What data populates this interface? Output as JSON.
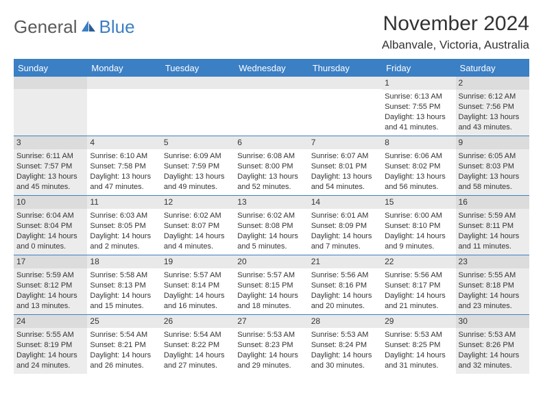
{
  "brand": {
    "part1": "General",
    "part2": "Blue"
  },
  "title": "November 2024",
  "location": "Albanvale, Victoria, Australia",
  "colors": {
    "accent": "#3b7fc4",
    "background": "#ffffff",
    "text": "#333333",
    "shaded": "#ececec",
    "numbar": "#e9e9e9"
  },
  "dayHeaders": [
    "Sunday",
    "Monday",
    "Tuesday",
    "Wednesday",
    "Thursday",
    "Friday",
    "Saturday"
  ],
  "weeks": [
    [
      {
        "empty": true,
        "shaded": true
      },
      {
        "empty": true,
        "shaded": false
      },
      {
        "empty": true,
        "shaded": false
      },
      {
        "empty": true,
        "shaded": false
      },
      {
        "empty": true,
        "shaded": false
      },
      {
        "day": "1",
        "sunrise": "Sunrise: 6:13 AM",
        "sunset": "Sunset: 7:55 PM",
        "daylight1": "Daylight: 13 hours",
        "daylight2": "and 41 minutes."
      },
      {
        "day": "2",
        "shaded": true,
        "sunrise": "Sunrise: 6:12 AM",
        "sunset": "Sunset: 7:56 PM",
        "daylight1": "Daylight: 13 hours",
        "daylight2": "and 43 minutes."
      }
    ],
    [
      {
        "day": "3",
        "shaded": true,
        "sunrise": "Sunrise: 6:11 AM",
        "sunset": "Sunset: 7:57 PM",
        "daylight1": "Daylight: 13 hours",
        "daylight2": "and 45 minutes."
      },
      {
        "day": "4",
        "sunrise": "Sunrise: 6:10 AM",
        "sunset": "Sunset: 7:58 PM",
        "daylight1": "Daylight: 13 hours",
        "daylight2": "and 47 minutes."
      },
      {
        "day": "5",
        "sunrise": "Sunrise: 6:09 AM",
        "sunset": "Sunset: 7:59 PM",
        "daylight1": "Daylight: 13 hours",
        "daylight2": "and 49 minutes."
      },
      {
        "day": "6",
        "sunrise": "Sunrise: 6:08 AM",
        "sunset": "Sunset: 8:00 PM",
        "daylight1": "Daylight: 13 hours",
        "daylight2": "and 52 minutes."
      },
      {
        "day": "7",
        "sunrise": "Sunrise: 6:07 AM",
        "sunset": "Sunset: 8:01 PM",
        "daylight1": "Daylight: 13 hours",
        "daylight2": "and 54 minutes."
      },
      {
        "day": "8",
        "sunrise": "Sunrise: 6:06 AM",
        "sunset": "Sunset: 8:02 PM",
        "daylight1": "Daylight: 13 hours",
        "daylight2": "and 56 minutes."
      },
      {
        "day": "9",
        "shaded": true,
        "sunrise": "Sunrise: 6:05 AM",
        "sunset": "Sunset: 8:03 PM",
        "daylight1": "Daylight: 13 hours",
        "daylight2": "and 58 minutes."
      }
    ],
    [
      {
        "day": "10",
        "shaded": true,
        "sunrise": "Sunrise: 6:04 AM",
        "sunset": "Sunset: 8:04 PM",
        "daylight1": "Daylight: 14 hours",
        "daylight2": "and 0 minutes."
      },
      {
        "day": "11",
        "sunrise": "Sunrise: 6:03 AM",
        "sunset": "Sunset: 8:05 PM",
        "daylight1": "Daylight: 14 hours",
        "daylight2": "and 2 minutes."
      },
      {
        "day": "12",
        "sunrise": "Sunrise: 6:02 AM",
        "sunset": "Sunset: 8:07 PM",
        "daylight1": "Daylight: 14 hours",
        "daylight2": "and 4 minutes."
      },
      {
        "day": "13",
        "sunrise": "Sunrise: 6:02 AM",
        "sunset": "Sunset: 8:08 PM",
        "daylight1": "Daylight: 14 hours",
        "daylight2": "and 5 minutes."
      },
      {
        "day": "14",
        "sunrise": "Sunrise: 6:01 AM",
        "sunset": "Sunset: 8:09 PM",
        "daylight1": "Daylight: 14 hours",
        "daylight2": "and 7 minutes."
      },
      {
        "day": "15",
        "sunrise": "Sunrise: 6:00 AM",
        "sunset": "Sunset: 8:10 PM",
        "daylight1": "Daylight: 14 hours",
        "daylight2": "and 9 minutes."
      },
      {
        "day": "16",
        "shaded": true,
        "sunrise": "Sunrise: 5:59 AM",
        "sunset": "Sunset: 8:11 PM",
        "daylight1": "Daylight: 14 hours",
        "daylight2": "and 11 minutes."
      }
    ],
    [
      {
        "day": "17",
        "shaded": true,
        "sunrise": "Sunrise: 5:59 AM",
        "sunset": "Sunset: 8:12 PM",
        "daylight1": "Daylight: 14 hours",
        "daylight2": "and 13 minutes."
      },
      {
        "day": "18",
        "sunrise": "Sunrise: 5:58 AM",
        "sunset": "Sunset: 8:13 PM",
        "daylight1": "Daylight: 14 hours",
        "daylight2": "and 15 minutes."
      },
      {
        "day": "19",
        "sunrise": "Sunrise: 5:57 AM",
        "sunset": "Sunset: 8:14 PM",
        "daylight1": "Daylight: 14 hours",
        "daylight2": "and 16 minutes."
      },
      {
        "day": "20",
        "sunrise": "Sunrise: 5:57 AM",
        "sunset": "Sunset: 8:15 PM",
        "daylight1": "Daylight: 14 hours",
        "daylight2": "and 18 minutes."
      },
      {
        "day": "21",
        "sunrise": "Sunrise: 5:56 AM",
        "sunset": "Sunset: 8:16 PM",
        "daylight1": "Daylight: 14 hours",
        "daylight2": "and 20 minutes."
      },
      {
        "day": "22",
        "sunrise": "Sunrise: 5:56 AM",
        "sunset": "Sunset: 8:17 PM",
        "daylight1": "Daylight: 14 hours",
        "daylight2": "and 21 minutes."
      },
      {
        "day": "23",
        "shaded": true,
        "sunrise": "Sunrise: 5:55 AM",
        "sunset": "Sunset: 8:18 PM",
        "daylight1": "Daylight: 14 hours",
        "daylight2": "and 23 minutes."
      }
    ],
    [
      {
        "day": "24",
        "shaded": true,
        "sunrise": "Sunrise: 5:55 AM",
        "sunset": "Sunset: 8:19 PM",
        "daylight1": "Daylight: 14 hours",
        "daylight2": "and 24 minutes."
      },
      {
        "day": "25",
        "sunrise": "Sunrise: 5:54 AM",
        "sunset": "Sunset: 8:21 PM",
        "daylight1": "Daylight: 14 hours",
        "daylight2": "and 26 minutes."
      },
      {
        "day": "26",
        "sunrise": "Sunrise: 5:54 AM",
        "sunset": "Sunset: 8:22 PM",
        "daylight1": "Daylight: 14 hours",
        "daylight2": "and 27 minutes."
      },
      {
        "day": "27",
        "sunrise": "Sunrise: 5:53 AM",
        "sunset": "Sunset: 8:23 PM",
        "daylight1": "Daylight: 14 hours",
        "daylight2": "and 29 minutes."
      },
      {
        "day": "28",
        "sunrise": "Sunrise: 5:53 AM",
        "sunset": "Sunset: 8:24 PM",
        "daylight1": "Daylight: 14 hours",
        "daylight2": "and 30 minutes."
      },
      {
        "day": "29",
        "sunrise": "Sunrise: 5:53 AM",
        "sunset": "Sunset: 8:25 PM",
        "daylight1": "Daylight: 14 hours",
        "daylight2": "and 31 minutes."
      },
      {
        "day": "30",
        "shaded": true,
        "sunrise": "Sunrise: 5:53 AM",
        "sunset": "Sunset: 8:26 PM",
        "daylight1": "Daylight: 14 hours",
        "daylight2": "and 32 minutes."
      }
    ]
  ]
}
